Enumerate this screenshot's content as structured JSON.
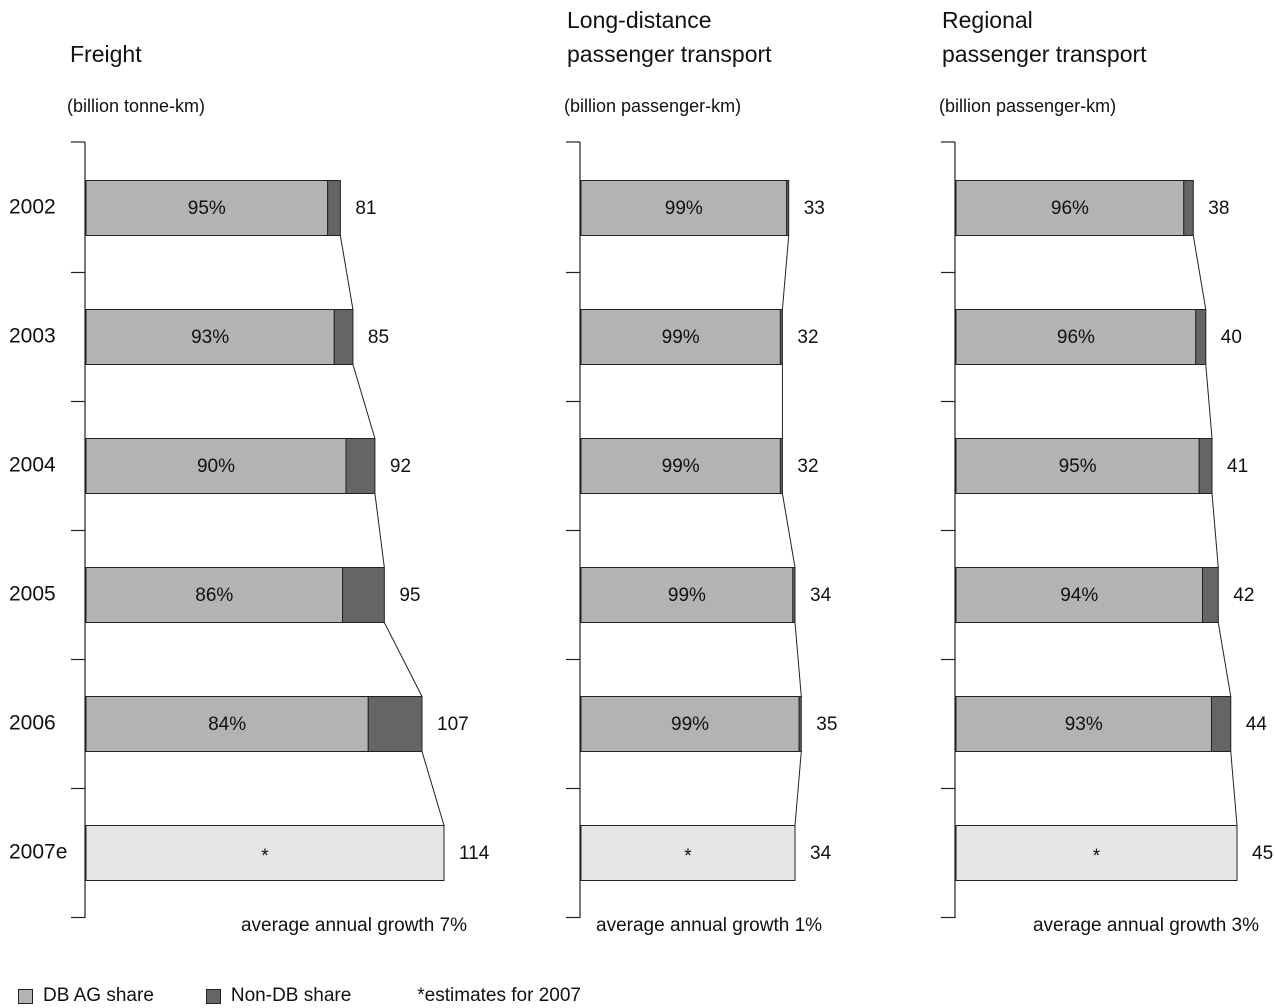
{
  "chart_data": {
    "type": "bar",
    "orientation": "horizontal",
    "stacked": true,
    "categories": [
      "2002",
      "2003",
      "2004",
      "2005",
      "2006",
      "2007e"
    ],
    "colors": {
      "db": "#b3b3b3",
      "non_db": "#656565",
      "estimate": "#e6e6e6"
    },
    "legend": {
      "position": "bottom",
      "db_label": "DB AG share",
      "non_db_label": "Non-DB share",
      "note": "*estimates for 2007"
    },
    "panels": [
      {
        "title": [
          "Freight"
        ],
        "unit": "(billion tonne-km)",
        "xlim": [
          0,
          114
        ],
        "totals": [
          81,
          85,
          92,
          95,
          107,
          114
        ],
        "db_share": [
          "95%",
          "93%",
          "90%",
          "86%",
          "84%",
          "*"
        ],
        "db_share_values": [
          95,
          93,
          90,
          86,
          84,
          null
        ],
        "estimate_marker": "*",
        "growth": "average annual growth 7%"
      },
      {
        "title": [
          "Long-distance",
          "passenger transport"
        ],
        "unit": "(billion passenger-km)",
        "xlim": [
          0,
          34
        ],
        "totals": [
          33,
          32,
          32,
          34,
          35,
          34
        ],
        "db_share": [
          "99%",
          "99%",
          "99%",
          "99%",
          "99%",
          "*"
        ],
        "db_share_values": [
          99,
          99,
          99,
          99,
          99,
          null
        ],
        "estimate_marker": "*",
        "growth": "average annual growth 1%"
      },
      {
        "title": [
          "Regional",
          "passenger transport"
        ],
        "unit": "(billion passenger-km)",
        "xlim": [
          0,
          45
        ],
        "totals": [
          38,
          40,
          41,
          42,
          44,
          45
        ],
        "db_share": [
          "96%",
          "96%",
          "95%",
          "94%",
          "93%",
          "*"
        ],
        "db_share_values": [
          96,
          96,
          95,
          94,
          93,
          null
        ],
        "estimate_marker": "*",
        "growth": "average annual growth 3%"
      }
    ]
  }
}
